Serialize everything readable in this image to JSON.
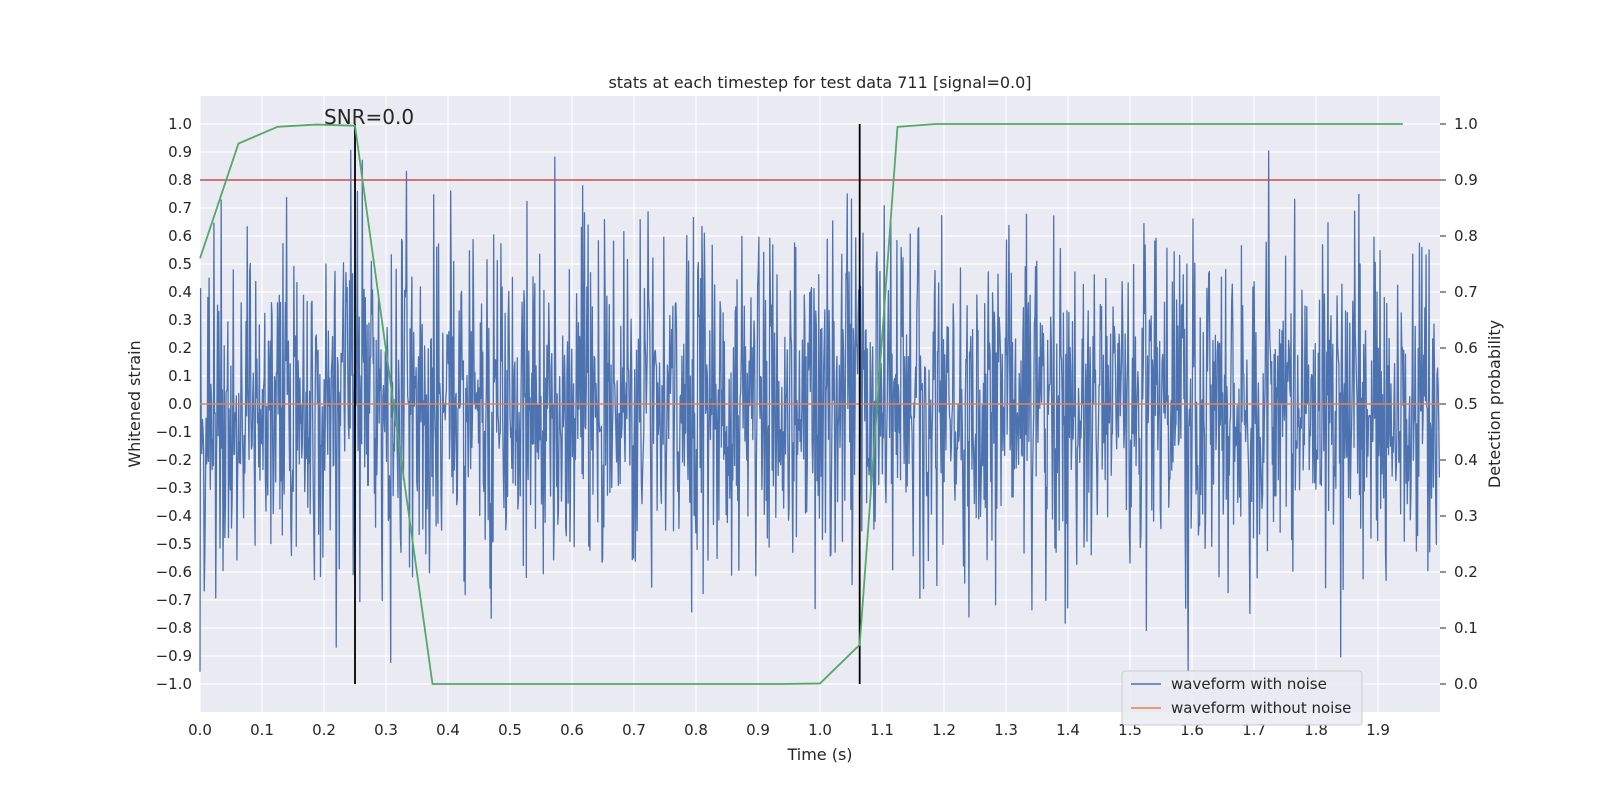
{
  "chart_data": {
    "type": "line",
    "title": "stats at each timestep for test data 711 [signal=0.0]",
    "xlabel": "Time (s)",
    "ylabel": "Whitened strain",
    "y2label": "Detection probability",
    "annotation": "SNR=0.0",
    "xlim": [
      0.0,
      2.0
    ],
    "ylim": [
      -1.1,
      1.1
    ],
    "y2lim": [
      -0.05,
      1.05
    ],
    "xticks": [
      0.0,
      0.1,
      0.2,
      0.3,
      0.4,
      0.5,
      0.6,
      0.7,
      0.8,
      0.9,
      1.0,
      1.1,
      1.2,
      1.3,
      1.4,
      1.5,
      1.6,
      1.7,
      1.8,
      1.9
    ],
    "yticks": [
      -1.0,
      -0.9,
      -0.8,
      -0.7,
      -0.6,
      -0.5,
      -0.4,
      -0.3,
      -0.2,
      -0.1,
      0.0,
      0.1,
      0.2,
      0.3,
      0.4,
      0.5,
      0.6,
      0.7,
      0.8,
      0.9,
      1.0
    ],
    "y2ticks": [
      0.0,
      0.1,
      0.2,
      0.3,
      0.4,
      0.5,
      0.6,
      0.7,
      0.8,
      0.9,
      1.0
    ],
    "threshold_y": 0.8,
    "detection_window_x": [
      0.25,
      1.064
    ],
    "legend": {
      "placement": "lower-right",
      "entries": [
        "waveform with noise",
        "waveform without noise"
      ]
    },
    "series": [
      {
        "name": "waveform with noise",
        "color": "#4c72b0",
        "axis": "left",
        "kind": "noise",
        "count": 2048,
        "seed": 711
      },
      {
        "name": "waveform without noise",
        "color": "#dd8452",
        "axis": "left",
        "x": [
          0.0,
          2.0
        ],
        "y": [
          0.0,
          0.0
        ]
      },
      {
        "name": "detection probability",
        "color": "#55a868",
        "axis": "right",
        "x": [
          0.0,
          0.062,
          0.125,
          0.187,
          0.25,
          0.312,
          0.375,
          0.437,
          0.5,
          0.562,
          0.625,
          0.687,
          0.75,
          0.812,
          0.875,
          0.937,
          1.0,
          1.064,
          1.125,
          1.187,
          1.25,
          1.312,
          1.375,
          1.437,
          1.5,
          1.562,
          1.625,
          1.687,
          1.75,
          1.812,
          1.875,
          1.94
        ],
        "y": [
          0.76,
          0.965,
          0.995,
          0.999,
          0.997,
          0.5,
          0.0,
          0.0,
          0.0,
          0.0,
          0.0,
          0.0,
          0.0,
          0.0,
          0.0,
          0.0,
          0.001,
          0.07,
          0.995,
          1.0,
          1.0,
          1.0,
          1.0,
          1.0,
          1.0,
          1.0,
          1.0,
          1.0,
          1.0,
          1.0,
          1.0,
          1.0
        ]
      }
    ],
    "colors": {
      "threshold": "#c44e52",
      "window": "#000000",
      "background": "#eaeaf2",
      "grid": "#ffffff"
    }
  }
}
